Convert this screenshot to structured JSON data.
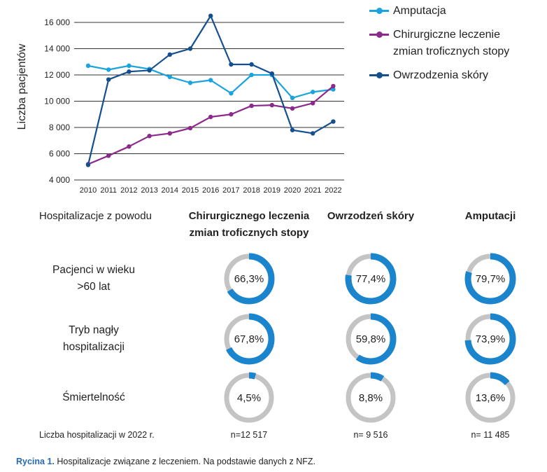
{
  "chart_data": [
    {
      "type": "line",
      "ylabel": "Liczba pacjentów",
      "ylim": [
        4000,
        16000
      ],
      "yticks": [
        "4 000",
        "6 000",
        "8 000",
        "10 000",
        "12 000",
        "14 000",
        "16 000"
      ],
      "ytick_values": [
        4000,
        6000,
        8000,
        10000,
        12000,
        14000,
        16000
      ],
      "x": [
        "2010",
        "2011",
        "2012",
        "2013",
        "2014",
        "2015",
        "2016",
        "2017",
        "2018",
        "2019",
        "2020",
        "2021",
        "2022"
      ],
      "grid": "horizontal",
      "legend_position": "top-right",
      "series": [
        {
          "name": "Amputacja",
          "color": "#1aa3dd",
          "values": [
            12700,
            12400,
            12700,
            12450,
            11850,
            11400,
            11600,
            10600,
            12000,
            12000,
            10250,
            10700,
            10900
          ]
        },
        {
          "name": "Chirurgiczne leczenie zmian troficznych stopy",
          "color": "#8b2a8b",
          "values": [
            5200,
            5850,
            6550,
            7350,
            7550,
            7950,
            8800,
            9000,
            9650,
            9700,
            9450,
            9850,
            11150
          ]
        },
        {
          "name": "Owrzodzenia skóry",
          "color": "#14508f",
          "values": [
            5150,
            11650,
            12250,
            12350,
            13550,
            14000,
            16500,
            12800,
            12800,
            12100,
            7800,
            7550,
            8450
          ]
        }
      ]
    },
    {
      "type": "table",
      "header_label": "Hospitalizacje z powodu",
      "columns": [
        "Chirurgicznego leczenia zmian troficznych stopy",
        "Owrzodzeń skóry",
        "Amputacji"
      ],
      "column_lines": [
        [
          "Chirurgicznego leczenia",
          "zmian troficznych stopy"
        ],
        [
          "Owrzodzeń skóry"
        ],
        [
          "Amputacji"
        ]
      ],
      "rows": [
        {
          "label_lines": [
            "Pacjenci w wieku",
            ">60 lat"
          ],
          "values": [
            66.3,
            77.4,
            79.7
          ],
          "labels": [
            "66,3%",
            "77,4%",
            "79,7%"
          ],
          "color": "#1a84cc"
        },
        {
          "label_lines": [
            "Tryb nagły",
            "hospitalizacji"
          ],
          "values": [
            67.8,
            59.8,
            73.9
          ],
          "labels": [
            "67,8%",
            "59,8%",
            "73,9%"
          ],
          "color": "#1a84cc"
        },
        {
          "label_lines": [
            "Śmiertelność"
          ],
          "values": [
            4.5,
            8.8,
            13.6
          ],
          "labels": [
            "4,5%",
            "8,8%",
            "13,6%"
          ],
          "color": "#1a84cc"
        }
      ],
      "track_color": "#c4c4c4",
      "footer_label": "Liczba hospitalizacji w 2022 r.",
      "counts": [
        "n=12 517",
        "n= 9 516",
        "n= 11 485"
      ]
    }
  ],
  "caption": {
    "bold": "Rycina 1.",
    "text": " Hospitalizacje związane z leczeniem. Na podstawie danych z NFZ."
  }
}
